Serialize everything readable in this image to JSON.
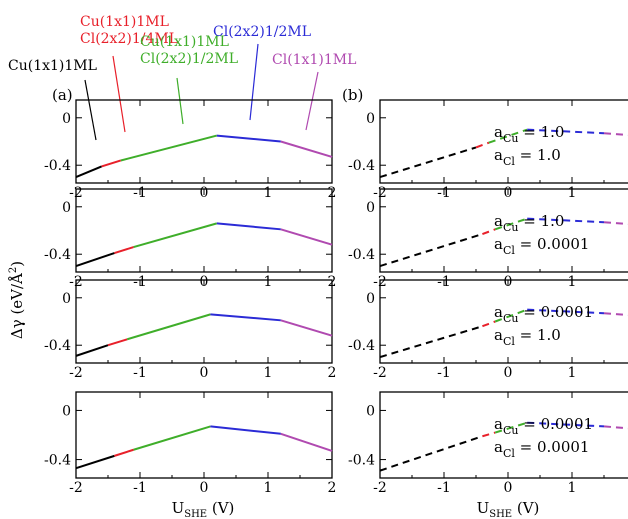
{
  "figure": {
    "ylabel": "Δγ (eV/Å²)",
    "xlabel": "U_SHE (V)",
    "colors": {
      "Cu(1x1)1ML": "#000000",
      "Cu(1x1)1ML+Cl(2x2)1/4ML": "#e8202a",
      "Cu(1x1)1ML+Cl(2x2)1/2ML": "#3fae2a",
      "Cl(2x2)1/2ML": "#2b2bd6",
      "Cl(1x1)1ML": "#b04ab0"
    },
    "annotations": [
      {
        "name": "ann-cu1x1",
        "lines": [
          "Cu(1x1)1ML"
        ],
        "color": "#000000"
      },
      {
        "name": "ann-cu-cl14",
        "lines": [
          "Cu(1x1)1ML",
          "Cl(2x2)1/4ML"
        ],
        "color": "#e8202a"
      },
      {
        "name": "ann-cu-cl12",
        "lines": [
          "Cu(1x1)1ML",
          "Cl(2x2)1/2ML"
        ],
        "color": "#3fae2a"
      },
      {
        "name": "ann-cl2x2",
        "lines": [
          "Cl(2x2)1/2ML"
        ],
        "color": "#2b2bd6"
      },
      {
        "name": "ann-cl1x1",
        "lines": [
          "Cl(1x1)1ML"
        ],
        "color": "#b04ab0"
      }
    ],
    "column_labels": [
      "(a)",
      "(b)"
    ]
  },
  "chart_data": [
    {
      "panel": "a1",
      "type": "line",
      "xlim": [
        -2,
        2
      ],
      "ylim": [
        -0.55,
        0.15
      ],
      "xticks": [
        -2,
        -1,
        0,
        1,
        2
      ],
      "yticks": [
        0,
        -0.4
      ],
      "yticklabels": [
        "0",
        "-0.4"
      ],
      "series": [
        {
          "color": "#000000",
          "x": [
            -2.0,
            -1.6
          ],
          "y": [
            -0.5,
            -0.41
          ]
        },
        {
          "color": "#e8202a",
          "x": [
            -1.6,
            -1.3
          ],
          "y": [
            -0.41,
            -0.36
          ]
        },
        {
          "color": "#3fae2a",
          "x": [
            -1.3,
            0.2
          ],
          "y": [
            -0.36,
            -0.15
          ]
        },
        {
          "color": "#2b2bd6",
          "x": [
            0.2,
            1.2
          ],
          "y": [
            -0.15,
            -0.2
          ]
        },
        {
          "color": "#b04ab0",
          "x": [
            1.2,
            2.0
          ],
          "y": [
            -0.2,
            -0.33
          ]
        }
      ]
    },
    {
      "panel": "b1",
      "type": "line",
      "xlim": [
        -2,
        2
      ],
      "ylim": [
        -0.55,
        0.15
      ],
      "xticks": [
        -2,
        -1,
        0,
        1,
        2
      ],
      "yticks": [
        0,
        -0.4
      ],
      "yticklabels": [
        "0",
        "-0.4"
      ],
      "legend_text": [
        "a_Cu = 1.0",
        "a_Cl = 1.0"
      ],
      "series": [
        {
          "color": "#000000",
          "dashed": true,
          "x": [
            -2.0,
            -0.5
          ],
          "y": [
            -0.5,
            -0.25
          ]
        },
        {
          "color": "#e8202a",
          "dashed": true,
          "x": [
            -0.5,
            -0.3
          ],
          "y": [
            -0.25,
            -0.21
          ]
        },
        {
          "color": "#3fae2a",
          "dashed": true,
          "x": [
            -0.3,
            0.3
          ],
          "y": [
            -0.21,
            -0.1
          ]
        },
        {
          "color": "#2b2bd6",
          "dashed": true,
          "x": [
            0.3,
            1.5
          ],
          "y": [
            -0.1,
            -0.13
          ]
        },
        {
          "color": "#b04ab0",
          "dashed": true,
          "x": [
            1.5,
            2.0
          ],
          "y": [
            -0.13,
            -0.15
          ]
        }
      ]
    },
    {
      "panel": "a2",
      "type": "line",
      "xlim": [
        -2,
        2
      ],
      "ylim": [
        -0.55,
        0.15
      ],
      "xticks": [
        -2,
        -1,
        0,
        1,
        2
      ],
      "yticks": [
        0,
        -0.4
      ],
      "yticklabels": [
        "0",
        "-0.4"
      ],
      "series": [
        {
          "color": "#000000",
          "x": [
            -2.0,
            -1.4
          ],
          "y": [
            -0.5,
            -0.39
          ]
        },
        {
          "color": "#e8202a",
          "x": [
            -1.4,
            -1.1
          ],
          "y": [
            -0.39,
            -0.34
          ]
        },
        {
          "color": "#3fae2a",
          "x": [
            -1.1,
            0.2
          ],
          "y": [
            -0.34,
            -0.14
          ]
        },
        {
          "color": "#2b2bd6",
          "x": [
            0.2,
            1.2
          ],
          "y": [
            -0.14,
            -0.19
          ]
        },
        {
          "color": "#b04ab0",
          "x": [
            1.2,
            2.0
          ],
          "y": [
            -0.19,
            -0.32
          ]
        }
      ]
    },
    {
      "panel": "b2",
      "type": "line",
      "xlim": [
        -2,
        2
      ],
      "ylim": [
        -0.55,
        0.15
      ],
      "xticks": [
        -2,
        -1,
        0,
        1,
        2
      ],
      "yticks": [
        0,
        -0.4
      ],
      "yticklabels": [
        "0",
        "-0.4"
      ],
      "legend_text": [
        "a_Cu = 1.0",
        "a_Cl = 0.0001"
      ],
      "series": [
        {
          "color": "#000000",
          "dashed": true,
          "x": [
            -2.0,
            -0.4
          ],
          "y": [
            -0.5,
            -0.23
          ]
        },
        {
          "color": "#e8202a",
          "dashed": true,
          "x": [
            -0.4,
            -0.2
          ],
          "y": [
            -0.23,
            -0.19
          ]
        },
        {
          "color": "#3fae2a",
          "dashed": true,
          "x": [
            -0.2,
            0.3
          ],
          "y": [
            -0.19,
            -0.1
          ]
        },
        {
          "color": "#2b2bd6",
          "dashed": true,
          "x": [
            0.3,
            1.5
          ],
          "y": [
            -0.1,
            -0.13
          ]
        },
        {
          "color": "#b04ab0",
          "dashed": true,
          "x": [
            1.5,
            2.0
          ],
          "y": [
            -0.13,
            -0.15
          ]
        }
      ]
    },
    {
      "panel": "a3",
      "type": "line",
      "xlim": [
        -2,
        2
      ],
      "ylim": [
        -0.55,
        0.15
      ],
      "xticks": [
        -2,
        -1,
        0,
        1,
        2
      ],
      "yticks": [
        0,
        -0.4
      ],
      "yticklabels": [
        "0",
        "-0.4"
      ],
      "series": [
        {
          "color": "#000000",
          "x": [
            -2.0,
            -1.5
          ],
          "y": [
            -0.49,
            -0.4
          ]
        },
        {
          "color": "#e8202a",
          "x": [
            -1.5,
            -1.2
          ],
          "y": [
            -0.4,
            -0.35
          ]
        },
        {
          "color": "#3fae2a",
          "x": [
            -1.2,
            0.1
          ],
          "y": [
            -0.35,
            -0.14
          ]
        },
        {
          "color": "#2b2bd6",
          "x": [
            0.1,
            1.2
          ],
          "y": [
            -0.14,
            -0.19
          ]
        },
        {
          "color": "#b04ab0",
          "x": [
            1.2,
            2.0
          ],
          "y": [
            -0.19,
            -0.32
          ]
        }
      ]
    },
    {
      "panel": "b3",
      "type": "line",
      "xlim": [
        -2,
        2
      ],
      "ylim": [
        -0.55,
        0.15
      ],
      "xticks": [
        -2,
        -1,
        0,
        1,
        2
      ],
      "yticks": [
        0,
        -0.4
      ],
      "yticklabels": [
        "0",
        "-0.4"
      ],
      "legend_text": [
        "a_Cu = 0.0001",
        "a_Cl = 1.0"
      ],
      "series": [
        {
          "color": "#000000",
          "dashed": true,
          "x": [
            -2.0,
            -0.4
          ],
          "y": [
            -0.5,
            -0.24
          ]
        },
        {
          "color": "#e8202a",
          "dashed": true,
          "x": [
            -0.4,
            -0.2
          ],
          "y": [
            -0.24,
            -0.2
          ]
        },
        {
          "color": "#3fae2a",
          "dashed": true,
          "x": [
            -0.2,
            0.3
          ],
          "y": [
            -0.2,
            -0.1
          ]
        },
        {
          "color": "#2b2bd6",
          "dashed": true,
          "x": [
            0.3,
            1.5
          ],
          "y": [
            -0.1,
            -0.13
          ]
        },
        {
          "color": "#b04ab0",
          "dashed": true,
          "x": [
            1.5,
            2.0
          ],
          "y": [
            -0.13,
            -0.15
          ]
        }
      ]
    },
    {
      "panel": "a4",
      "type": "line",
      "xlim": [
        -2,
        2
      ],
      "ylim": [
        -0.55,
        0.15
      ],
      "xticks": [
        -2,
        -1,
        0,
        1,
        2
      ],
      "yticks": [
        0,
        -0.4
      ],
      "yticklabels": [
        "0",
        "-0.4"
      ],
      "series": [
        {
          "color": "#000000",
          "x": [
            -2.0,
            -1.4
          ],
          "y": [
            -0.47,
            -0.37
          ]
        },
        {
          "color": "#e8202a",
          "x": [
            -1.4,
            -1.1
          ],
          "y": [
            -0.37,
            -0.32
          ]
        },
        {
          "color": "#3fae2a",
          "x": [
            -1.1,
            0.1
          ],
          "y": [
            -0.32,
            -0.13
          ]
        },
        {
          "color": "#2b2bd6",
          "x": [
            0.1,
            1.2
          ],
          "y": [
            -0.13,
            -0.19
          ]
        },
        {
          "color": "#b04ab0",
          "x": [
            1.2,
            2.0
          ],
          "y": [
            -0.19,
            -0.33
          ]
        }
      ]
    },
    {
      "panel": "b4",
      "type": "line",
      "xlim": [
        -2,
        2
      ],
      "ylim": [
        -0.55,
        0.15
      ],
      "xticks": [
        -2,
        -1,
        0,
        1,
        2
      ],
      "yticks": [
        0,
        -0.4
      ],
      "yticklabels": [
        "0",
        "-0.4"
      ],
      "legend_text": [
        "a_Cu = 0.0001",
        "a_Cl = 0.0001"
      ],
      "series": [
        {
          "color": "#000000",
          "dashed": true,
          "x": [
            -2.0,
            -0.4
          ],
          "y": [
            -0.49,
            -0.21
          ]
        },
        {
          "color": "#e8202a",
          "dashed": true,
          "x": [
            -0.4,
            -0.2
          ],
          "y": [
            -0.21,
            -0.18
          ]
        },
        {
          "color": "#3fae2a",
          "dashed": true,
          "x": [
            -0.2,
            0.3
          ],
          "y": [
            -0.18,
            -0.1
          ]
        },
        {
          "color": "#2b2bd6",
          "dashed": true,
          "x": [
            0.3,
            1.5
          ],
          "y": [
            -0.1,
            -0.13
          ]
        },
        {
          "color": "#b04ab0",
          "dashed": true,
          "x": [
            1.5,
            2.0
          ],
          "y": [
            -0.13,
            -0.15
          ]
        }
      ]
    }
  ]
}
